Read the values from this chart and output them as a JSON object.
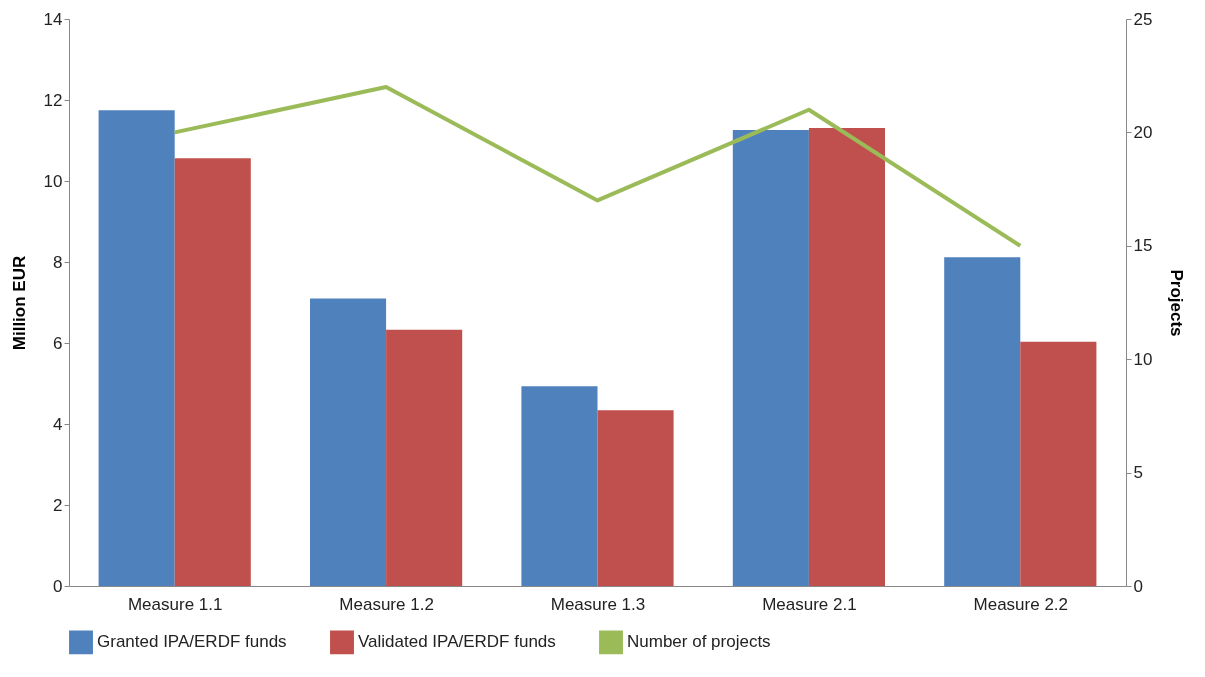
{
  "chart_data": {
    "type": "bar",
    "ylabel": "Million EUR",
    "y2label": "Projects",
    "categories": [
      "Measure 1.1",
      "Measure 1.2",
      "Measure 1.3",
      "Measure 2.1",
      "Measure 2.2"
    ],
    "series": [
      {
        "name": "Granted IPA/ERDF funds",
        "color": "#4f81bd",
        "values": [
          11.75,
          7.1,
          4.93,
          11.26,
          8.12
        ]
      },
      {
        "name": "Validated IPA/ERDF funds",
        "color": "#c0504d",
        "values": [
          10.56,
          6.33,
          4.34,
          11.31,
          6.03
        ]
      },
      {
        "name": "Number of projects",
        "color": "#9bbb59",
        "type": "line",
        "axis": "y2",
        "values": [
          20,
          22,
          17,
          21,
          15
        ]
      }
    ],
    "ylim": [
      0,
      14
    ],
    "yticks": [
      0,
      2,
      4,
      6,
      8,
      10,
      12,
      14
    ],
    "y2lim": [
      0,
      25
    ],
    "y2ticks": [
      0,
      5,
      10,
      15,
      20,
      25
    ],
    "grid": false,
    "legend": "bottom",
    "marker": "none"
  }
}
